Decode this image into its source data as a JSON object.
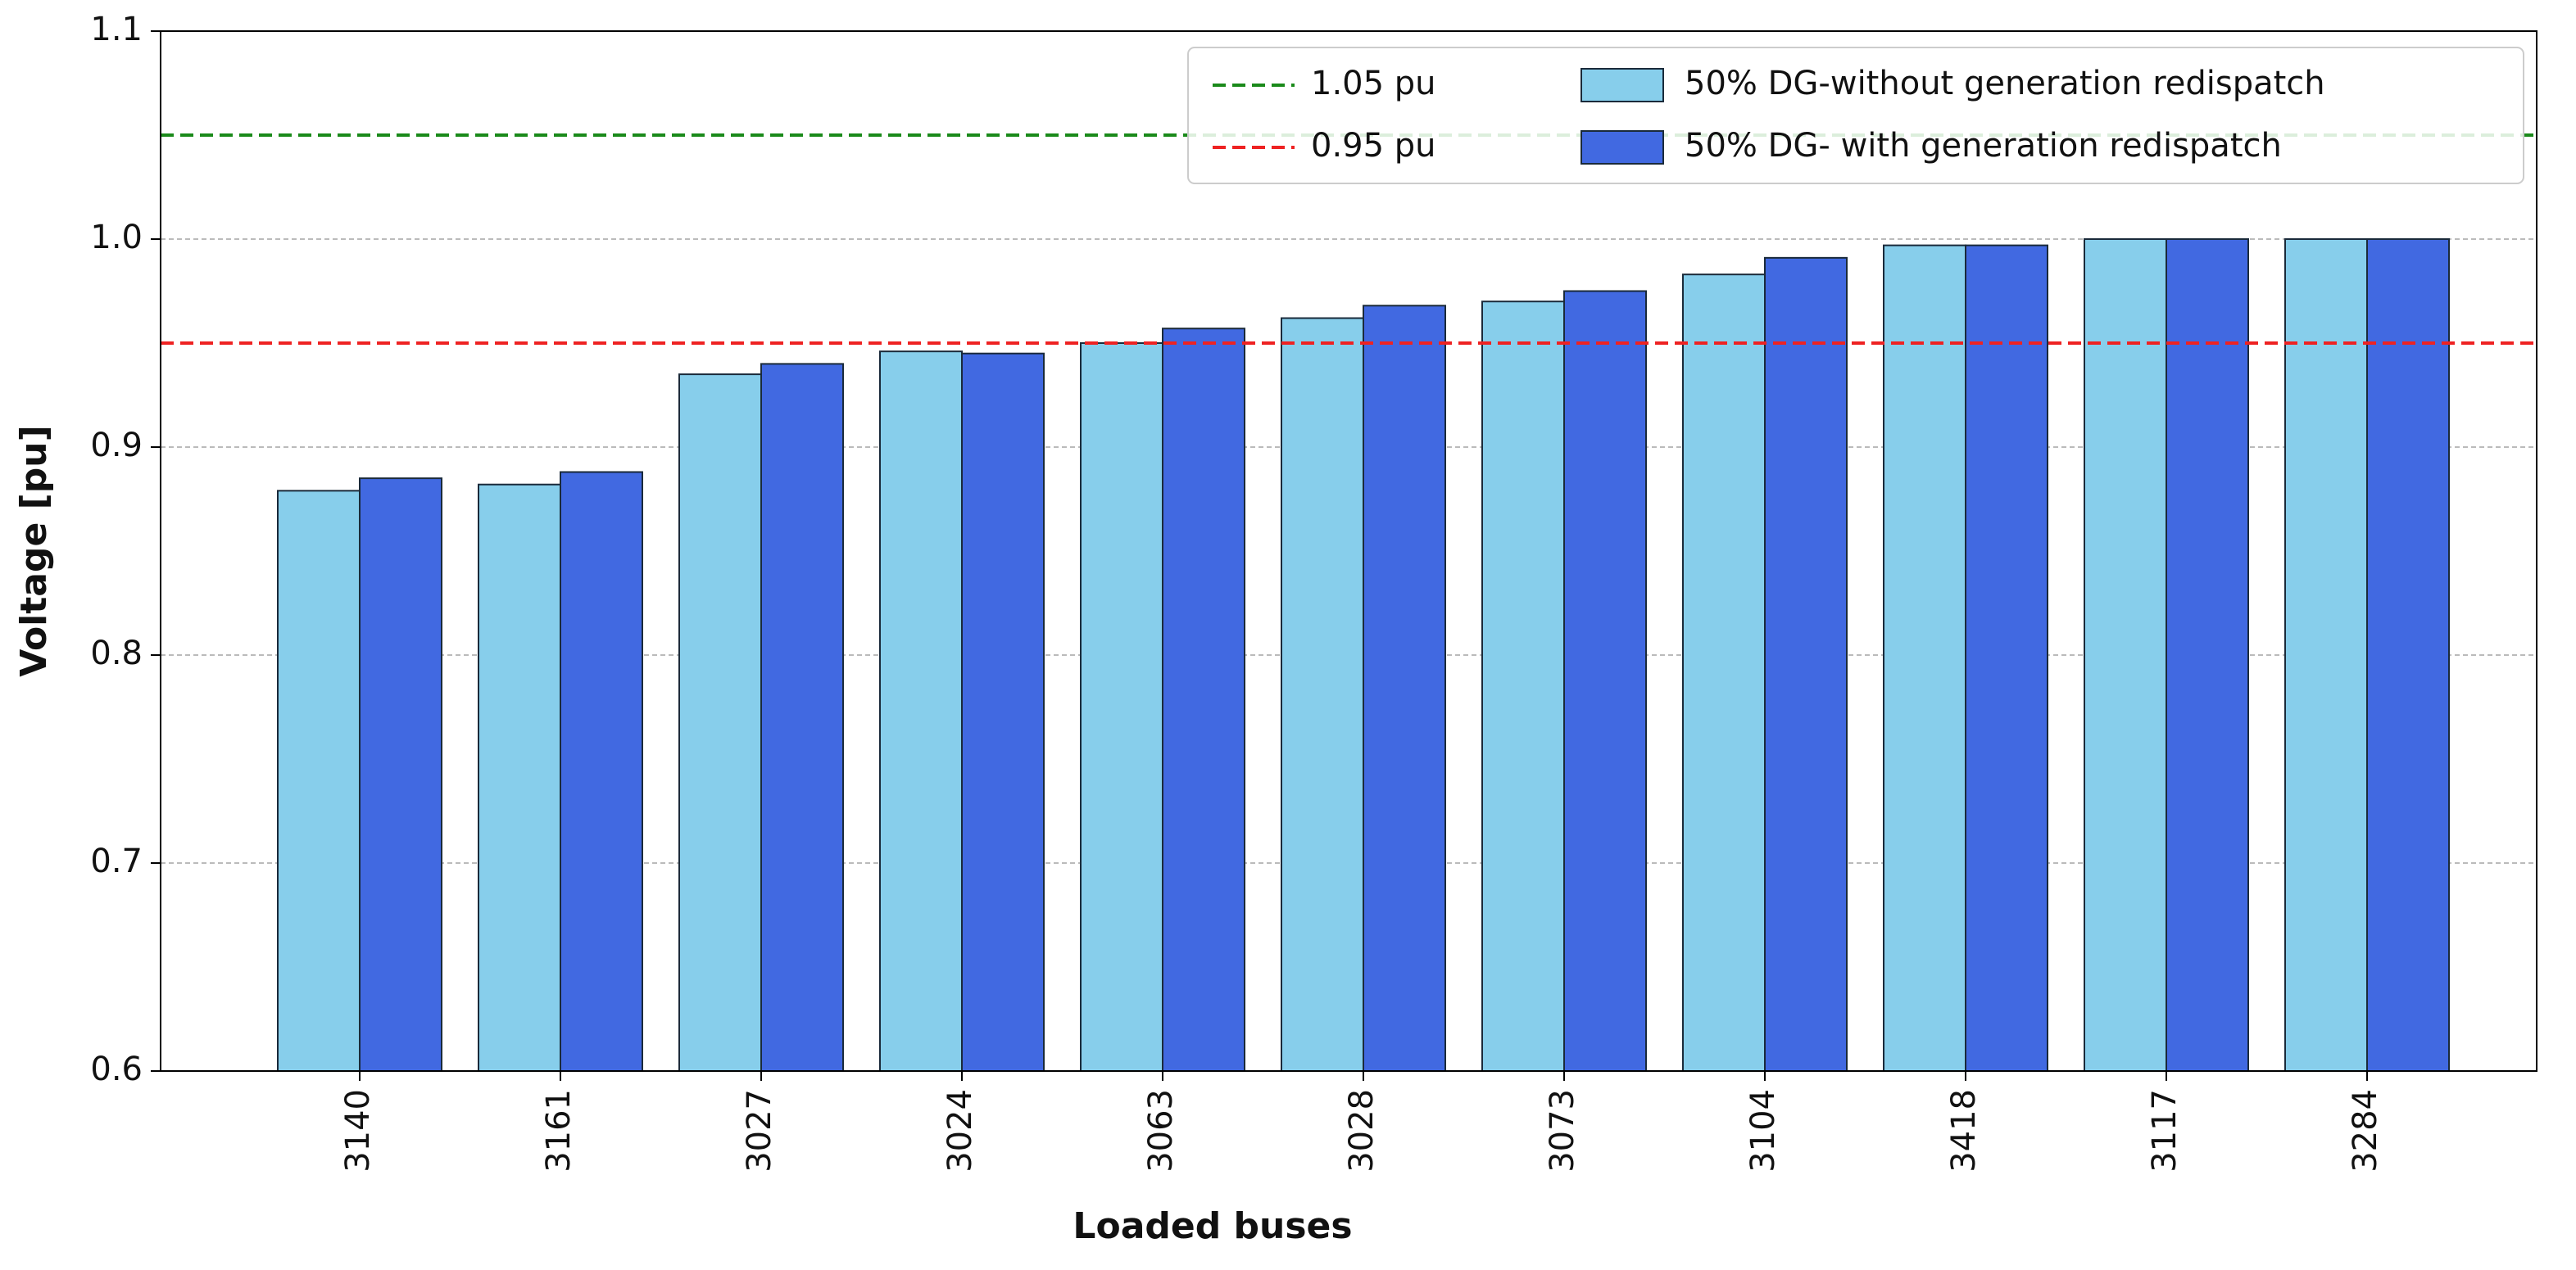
{
  "chart_data": {
    "type": "bar",
    "x_label": "Loaded buses",
    "y_label": "Voltage [pu]",
    "categories": [
      "3140",
      "3161",
      "3027",
      "3024",
      "3063",
      "3028",
      "3073",
      "3104",
      "3418",
      "3117",
      "3284"
    ],
    "series": [
      {
        "name": "50% DG-without generation redispatch",
        "color": "#87ceeb",
        "values": [
          0.879,
          0.882,
          0.935,
          0.946,
          0.95,
          0.962,
          0.97,
          0.983,
          0.997,
          1.0,
          1.0
        ]
      },
      {
        "name": "50% DG- with generation redispatch",
        "color": "#4169e1",
        "values": [
          0.885,
          0.888,
          0.94,
          0.945,
          0.957,
          0.968,
          0.975,
          0.991,
          0.997,
          1.0,
          1.0
        ]
      }
    ],
    "reference_lines": [
      {
        "name": "1.05 pu",
        "value": 1.05,
        "color": "#1a8a1a"
      },
      {
        "name": "0.95 pu",
        "value": 0.95,
        "color": "#ee2222"
      }
    ],
    "ylim": [
      0.6,
      1.1
    ],
    "yticks": [
      0.6,
      0.7,
      0.8,
      0.9,
      {
        "value": 1.0,
        "label": "1.0"
      },
      1.1
    ],
    "grid": true
  }
}
